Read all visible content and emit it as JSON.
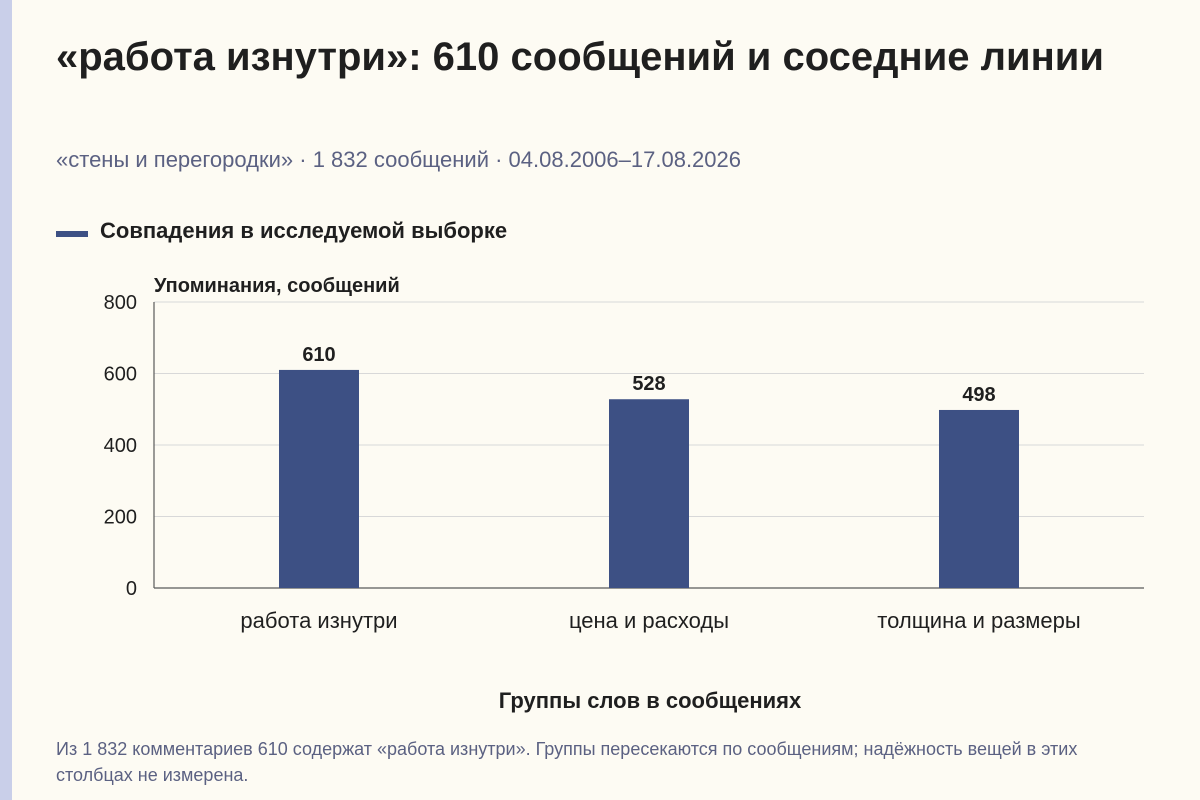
{
  "header": {
    "title": "«работа изнутри»: 610 сообщений и соседние линии",
    "subtitle": "«стены и перегородки» · 1 832 сообщений · 04.08.2006–17.08.2026"
  },
  "footnote": "Из 1 832 комментариев 610 содержат «работа изнутри». Группы пересекаются по сообщениям; надёжность вещей в этих столбцах не измерена.",
  "colors": {
    "bar": "#3d5084",
    "grid": "#d8d8d8",
    "axis": "#5a5a5a"
  },
  "chart_data": {
    "type": "bar",
    "categories": [
      "работа изнутри",
      "цена и расходы",
      "толщина и размеры"
    ],
    "series": [
      {
        "name": "Совпадения в исследуемой выборке",
        "values": [
          610,
          528,
          498
        ]
      }
    ],
    "xlabel": "Группы слов в сообщениях",
    "ylabel": "Упоминания, сообщений",
    "ylim": [
      0,
      800
    ],
    "yticks": [
      0,
      200,
      400,
      600,
      800
    ],
    "data_labels": [
      "610",
      "528",
      "498"
    ],
    "legend_position": "top-left",
    "grid": true
  }
}
